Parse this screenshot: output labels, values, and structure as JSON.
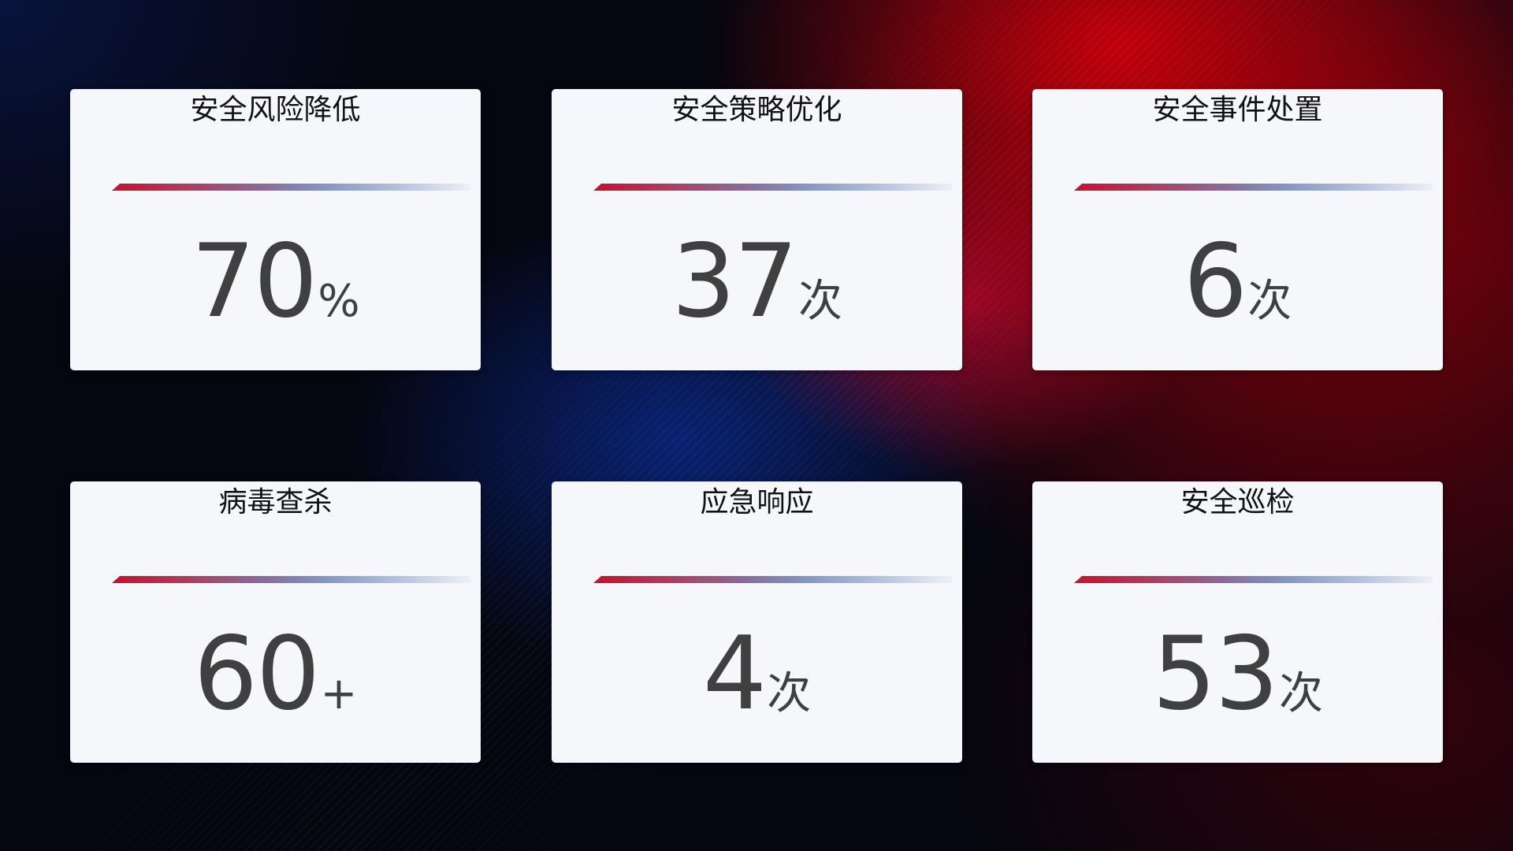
{
  "cards": [
    {
      "title": "安全风险降低",
      "value": "70",
      "unit": "%"
    },
    {
      "title": "安全策略优化",
      "value": "37",
      "unit": "次"
    },
    {
      "title": "安全事件处置",
      "value": "6",
      "unit": "次"
    },
    {
      "title": "病毒查杀",
      "value": "60",
      "unit": "+"
    },
    {
      "title": "应急响应",
      "value": "4",
      "unit": "次"
    },
    {
      "title": "安全巡检",
      "value": "53",
      "unit": "次"
    }
  ],
  "colors": {
    "accent_red": "#c8102e",
    "accent_blue": "#8093c4",
    "card_bg": "#f5f7fb",
    "value_text": "#404040"
  }
}
